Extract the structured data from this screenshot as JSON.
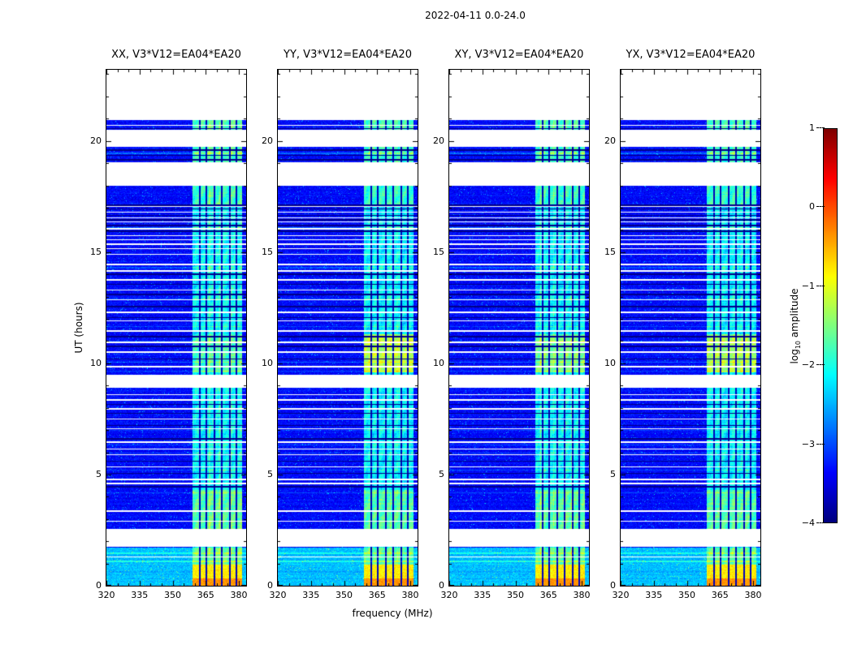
{
  "figure_title": "2022-04-11 0.0-24.0",
  "axes": {
    "xlabel": "frequency (MHz)",
    "ylabel": "UT (hours)"
  },
  "colorbar": {
    "label": "log10 amplitude",
    "label_pre": "log",
    "label_sub": "10",
    "label_post": " amplitude",
    "ticks": [
      1,
      0,
      -1,
      -2,
      -3,
      -4
    ],
    "vmin": -4,
    "vmax": 1
  },
  "colors": {
    "background": "#ffffff",
    "frame": "#000000",
    "colormap_low": "#000080",
    "colormap_high": "#800000"
  },
  "chart_data": {
    "type": "heatmap",
    "subtype": "dynamic-spectrum",
    "title": "2022-04-11 0.0-24.0",
    "xlabel": "frequency (MHz)",
    "ylabel": "UT (hours)",
    "xlim": [
      320,
      383.3
    ],
    "ylim": [
      0,
      23.2
    ],
    "x_ticks": [
      320,
      335,
      350,
      365,
      380
    ],
    "x_minor_step": 5,
    "y_ticks": [
      0,
      5,
      10,
      15,
      20
    ],
    "y_minor_step": 1,
    "colorbar": {
      "label": "log10 amplitude",
      "vmin": -4,
      "vmax": 1,
      "ticks": [
        1,
        0,
        -1,
        -2,
        -3,
        -4
      ],
      "colormap": "jet"
    },
    "panels": [
      {
        "title": "XX, V3*V12=EA04*EA20",
        "seed": 11,
        "band_patches": [
          [
            9.6,
            11.3,
            0.35
          ]
        ]
      },
      {
        "title": "YY, V3*V12=EA04*EA20",
        "seed": 22,
        "band_patches": [
          [
            9.6,
            11.3,
            0.95
          ]
        ]
      },
      {
        "title": "XY, V3*V12=EA04*EA20",
        "seed": 33,
        "band_patches": [
          [
            9.6,
            11.3,
            0.6
          ]
        ]
      },
      {
        "title": "YX, V3*V12=EA04*EA20",
        "seed": 44,
        "band_patches": [
          [
            9.6,
            11.3,
            0.85
          ]
        ]
      }
    ],
    "gen": {
      "background_level": -3.35,
      "band_level": -2.15,
      "band": [
        359,
        381.3
      ],
      "burst": [
        0,
        0.95
      ],
      "burst_level": -0.8,
      "white_gaps": [
        [
          1.75,
          2.55
        ],
        [
          8.9,
          9.5
        ],
        [
          18.0,
          19.05
        ],
        [
          19.75,
          20.5
        ],
        [
          20.95,
          23.2
        ]
      ],
      "flagged_channels": [
        362.4,
        365.3,
        368.8,
        372.2,
        375.9,
        379.0
      ],
      "white_lines": [
        1.3,
        2.9,
        3.35,
        4.6,
        4.78,
        5.35,
        5.9,
        6.15,
        6.45,
        7.05,
        7.5,
        7.95,
        8.35,
        8.6,
        9.85,
        10.5,
        10.95,
        11.45,
        11.9,
        12.3,
        12.85,
        13.3,
        13.75,
        14.15,
        14.45,
        14.9,
        15.15,
        15.35,
        15.55,
        15.75,
        16.05,
        16.35,
        16.55,
        16.8,
        17.05,
        20.7
      ],
      "dark_lines": [
        4.45,
        5.05,
        5.6,
        6.6,
        7.2,
        7.75,
        8.15,
        10.2,
        10.75,
        11.2,
        12.05,
        12.55,
        13.1,
        13.55,
        14.0,
        15.95,
        16.2,
        16.45,
        16.65,
        16.95,
        17.1,
        19.15,
        19.35,
        19.6,
        20.55
      ],
      "bright_rows": [
        1.1,
        1.45,
        10.05,
        14.3,
        16.1,
        19.45
      ],
      "patches_common": [
        [
          0.95,
          1.7,
          0.5
        ],
        [
          2.55,
          4.3,
          0.45
        ],
        [
          17.1,
          18.0,
          0.3
        ],
        [
          19.05,
          19.75,
          0.3
        ],
        [
          20.5,
          20.95,
          0.4
        ]
      ]
    }
  }
}
